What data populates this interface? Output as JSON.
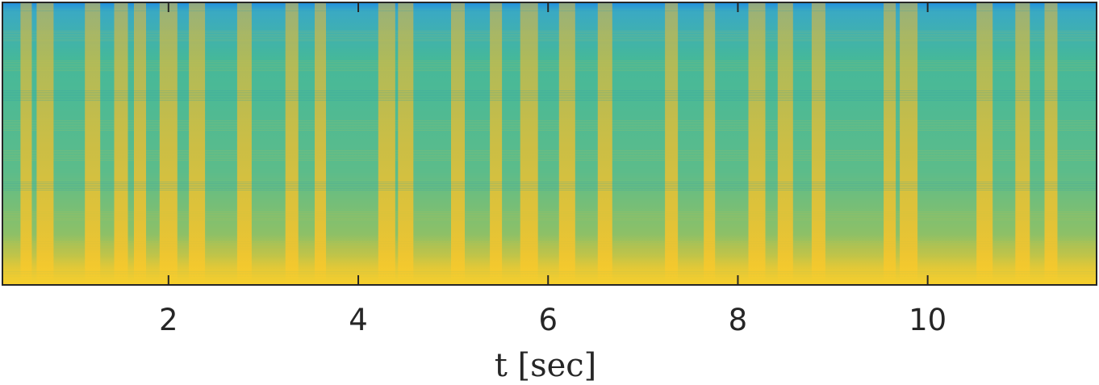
{
  "chart_data": {
    "type": "heatmap",
    "subtype": "spectrogram",
    "title": "",
    "xlabel": "t [sec]",
    "ylabel": "",
    "xlim": [
      0.25,
      11.78
    ],
    "xticks": [
      2,
      4,
      6,
      8,
      10
    ],
    "xtick_labels": [
      "2",
      "4",
      "6",
      "8",
      "10"
    ],
    "yticks": [],
    "colormap": "parula",
    "colors": {
      "low": "#1f8ee0",
      "mid": "#35b8a0",
      "high": "#f2bf2d",
      "axis": "#262626"
    },
    "energy_bands_sec": [
      0.5,
      0.7,
      1.2,
      1.5,
      1.7,
      2.0,
      2.3,
      2.8,
      3.3,
      3.6,
      4.3,
      4.5,
      5.05,
      5.45,
      5.8,
      6.2,
      6.6,
      7.3,
      7.7,
      8.2,
      8.5,
      8.85,
      9.6,
      9.8,
      10.6,
      11.0,
      11.3
    ]
  }
}
